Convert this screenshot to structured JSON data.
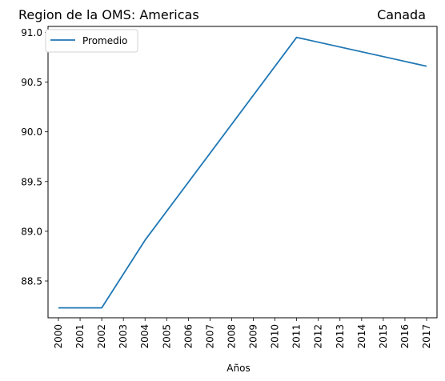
{
  "chart_data": {
    "type": "line",
    "title_left": "Region de la OMS: Americas",
    "title_right": "Canada",
    "xlabel": "Años",
    "ylabel": "",
    "categories": [
      "2000",
      "2001",
      "2002",
      "2003",
      "2004",
      "2005",
      "2006",
      "2007",
      "2008",
      "2009",
      "2010",
      "2011",
      "2012",
      "2013",
      "2014",
      "2015",
      "2016",
      "2017"
    ],
    "yticks": [
      "88.5",
      "89.0",
      "89.5",
      "90.0",
      "90.5",
      "91.0"
    ],
    "ytick_values": [
      88.5,
      89.0,
      89.5,
      90.0,
      90.5,
      91.0
    ],
    "ylim": [
      88.13,
      91.06
    ],
    "grid": false,
    "legend_position": "top-left",
    "series": [
      {
        "name": "Promedio",
        "color": "#1f77b4",
        "x": [
          "2000",
          "2002",
          "2004",
          "2011",
          "2017"
        ],
        "values": [
          88.23,
          88.23,
          88.91,
          90.95,
          90.66
        ]
      }
    ]
  }
}
